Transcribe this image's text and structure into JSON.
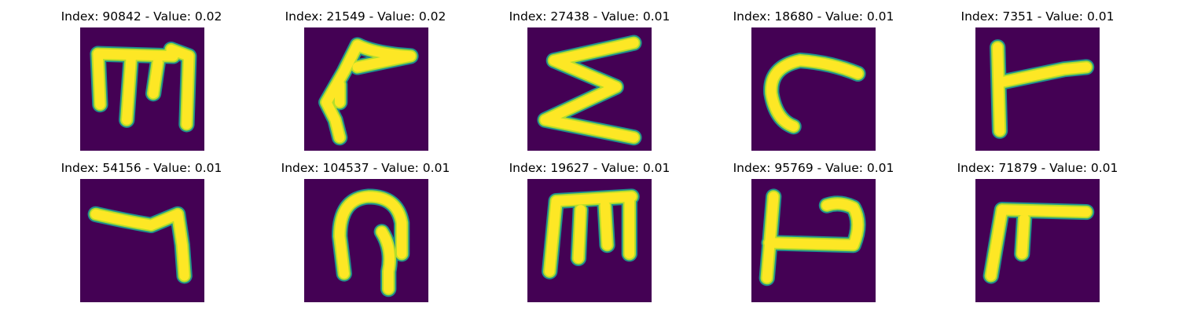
{
  "colors": {
    "background": "#440154",
    "stroke_core": "#fde725",
    "stroke_mid": "#b5de2b",
    "stroke_edge": "#21918c"
  },
  "panels": [
    {
      "title": "Index: 90842 - Value: 0.02",
      "glyph": "m-shape"
    },
    {
      "title": "Index: 21549 - Value: 0.02",
      "glyph": "hook-shape"
    },
    {
      "title": "Index: 27438 - Value: 0.01",
      "glyph": "sigma-shape"
    },
    {
      "title": "Index: 18680 - Value: 0.01",
      "glyph": "c-shape"
    },
    {
      "title": "Index: 7351 - Value: 0.01",
      "glyph": "tack-shape"
    },
    {
      "title": "Index: 54156 - Value: 0.01",
      "glyph": "seven-shape"
    },
    {
      "title": "Index: 104537 - Value: 0.01",
      "glyph": "loop-shape"
    },
    {
      "title": "Index: 19627 - Value: 0.01",
      "glyph": "m-shape"
    },
    {
      "title": "Index: 95769 - Value: 0.01",
      "glyph": "ear-shape"
    },
    {
      "title": "Index: 71879 - Value: 0.01",
      "glyph": "pi-shape"
    }
  ]
}
